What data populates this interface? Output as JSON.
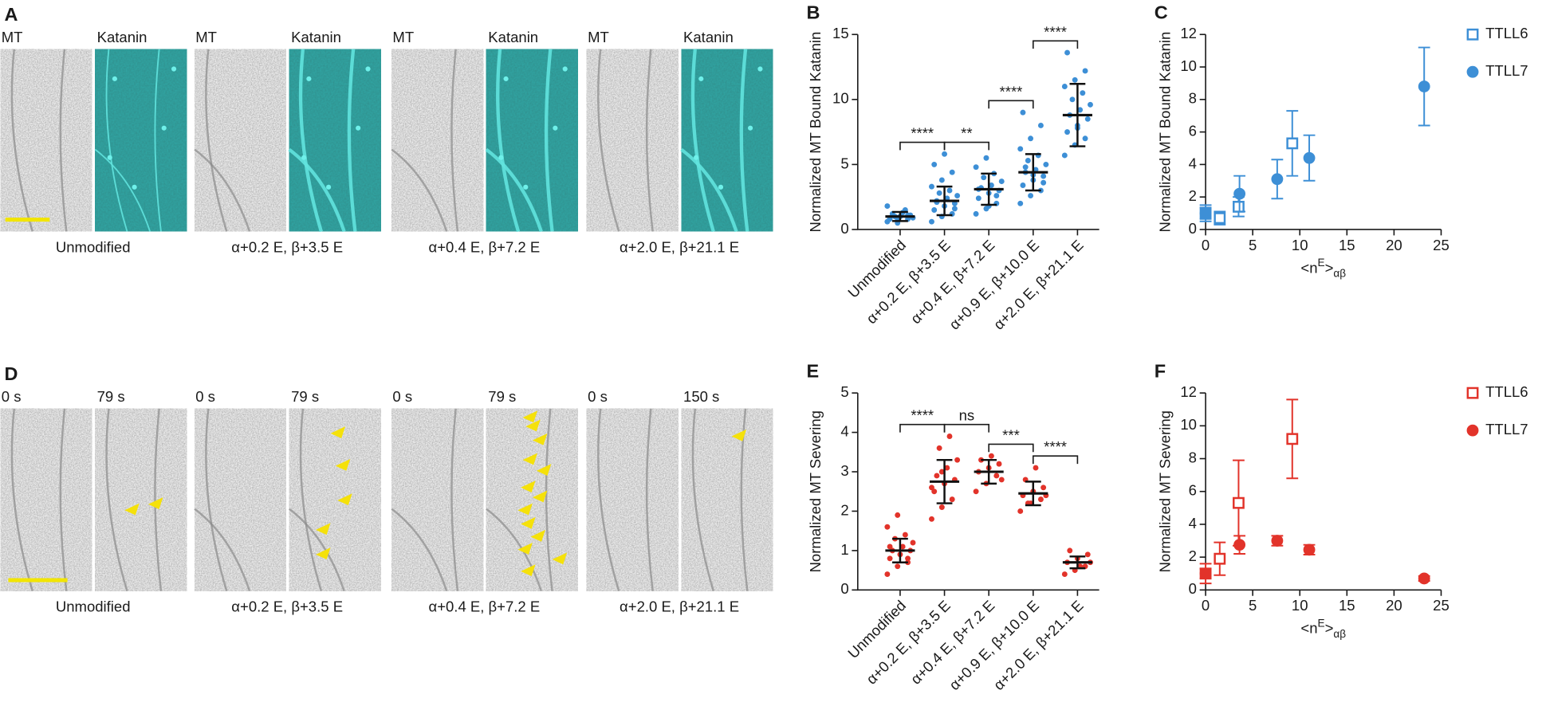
{
  "figure_a": {
    "letter": "A",
    "pairs": [
      {
        "left": "MT",
        "right": "Katanin",
        "caption": "Unmodified"
      },
      {
        "left": "MT",
        "right": "Katanin",
        "caption": "α+0.2 E, β+3.5 E"
      },
      {
        "left": "MT",
        "right": "Katanin",
        "caption": "α+0.4 E, β+7.2 E"
      },
      {
        "left": "MT",
        "right": "Katanin",
        "caption": "α+2.0 E, β+21.1 E"
      }
    ]
  },
  "figure_d": {
    "letter": "D",
    "pairs": [
      {
        "left": "0 s",
        "right": "79 s",
        "caption": "Unmodified"
      },
      {
        "left": "0 s",
        "right": "79 s",
        "caption": "α+0.2 E, β+3.5 E"
      },
      {
        "left": "0 s",
        "right": "79 s",
        "caption": "α+0.4 E, β+7.2 E"
      },
      {
        "left": "0 s",
        "right": "150 s",
        "caption": "α+2.0 E, β+21.1 E"
      }
    ]
  },
  "chart_data": [
    {
      "letter": "B",
      "type": "dot_plot",
      "ylabel": "Normalized MT Bound Katanin",
      "color": "#3d8fd6",
      "categories": [
        "Unmodified",
        "α+0.2 E, β+3.5 E",
        "α+0.4 E, β+7.2 E",
        "α+0.9 E, β+10.0 E",
        "α+2.0 E, β+21.1 E"
      ],
      "points": [
        [
          0.6,
          0.7,
          0.8,
          0.9,
          1.0,
          1.1,
          1.2,
          1.3,
          0.9,
          1.0,
          1.5,
          1.8,
          0.5,
          1.1,
          0.8
        ],
        [
          0.6,
          1.0,
          1.2,
          1.5,
          1.8,
          2.0,
          2.2,
          2.4,
          2.6,
          2.8,
          3.0,
          3.3,
          3.8,
          4.4,
          5.0,
          5.8,
          1.6,
          2.1
        ],
        [
          1.2,
          1.6,
          2.0,
          2.4,
          2.8,
          3.0,
          3.2,
          3.4,
          3.7,
          4.0,
          4.3,
          4.8,
          5.5,
          2.6,
          3.1,
          1.8
        ],
        [
          2.0,
          2.6,
          3.0,
          3.4,
          3.8,
          4.1,
          4.4,
          4.6,
          5.0,
          5.3,
          5.7,
          6.2,
          7.0,
          8.0,
          9.0,
          4.2,
          3.6,
          4.8
        ],
        [
          5.7,
          6.5,
          7.0,
          7.5,
          8.0,
          8.5,
          8.8,
          9.2,
          9.6,
          10.0,
          10.5,
          11.0,
          11.5,
          12.2,
          13.6,
          7.8
        ]
      ],
      "means": [
        1.0,
        2.2,
        3.1,
        4.4,
        8.8
      ],
      "sd": [
        0.35,
        1.1,
        1.2,
        1.4,
        2.4
      ],
      "ylim": [
        0,
        15
      ],
      "yticks": [
        0,
        5,
        10,
        15
      ],
      "comparisons": [
        {
          "from": 0,
          "to": 1,
          "label": "****"
        },
        {
          "from": 1,
          "to": 2,
          "label": "**"
        },
        {
          "from": 2,
          "to": 3,
          "label": "****"
        },
        {
          "from": 3,
          "to": 4,
          "label": "****"
        }
      ]
    },
    {
      "letter": "C",
      "type": "scatter",
      "ylabel": "Normalized MT Bound Katanin",
      "xlabel": {
        "main": "<n",
        "sup": "E",
        "end": ">",
        "sub": "αβ"
      },
      "xlim": [
        0,
        25
      ],
      "xticks": [
        0,
        5,
        10,
        15,
        20,
        25
      ],
      "ylim": [
        0,
        12
      ],
      "yticks": [
        0,
        2,
        4,
        6,
        8,
        10,
        12
      ],
      "series": [
        {
          "name": "TTLL6",
          "color": "#3d8fd6",
          "marker": "square-open",
          "x": [
            0,
            1.5,
            3.5,
            9.2
          ],
          "values": [
            1.0,
            0.7,
            1.4,
            5.3
          ],
          "errors": [
            0.5,
            0.4,
            0.6,
            2.0
          ]
        },
        {
          "name": "TTLL7",
          "color": "#3d8fd6",
          "marker": "circle",
          "x": [
            0,
            3.6,
            7.6,
            11,
            23.2
          ],
          "values": [
            1.0,
            2.2,
            3.1,
            4.4,
            8.8
          ],
          "errors": [
            0.35,
            1.1,
            1.2,
            1.4,
            2.4
          ]
        }
      ]
    },
    {
      "letter": "E",
      "type": "dot_plot",
      "ylabel": "Normalized MT Severing",
      "color": "#e2332a",
      "categories": [
        "Unmodified",
        "α+0.2 E, β+3.5 E",
        "α+0.4 E, β+7.2 E",
        "α+0.9 E, β+10.0 E",
        "α+2.0 E, β+21.1 E"
      ],
      "points": [
        [
          0.4,
          0.6,
          0.7,
          0.8,
          0.9,
          1.0,
          1.0,
          1.1,
          1.2,
          1.3,
          1.4,
          1.6,
          1.9,
          0.8,
          1.1
        ],
        [
          1.8,
          2.1,
          2.3,
          2.5,
          2.7,
          2.8,
          2.9,
          3.1,
          3.3,
          3.6,
          3.9,
          2.6,
          3.0
        ],
        [
          2.5,
          2.7,
          2.9,
          3.0,
          3.1,
          3.2,
          3.3,
          3.4,
          2.8
        ],
        [
          2.0,
          2.2,
          2.3,
          2.4,
          2.5,
          2.6,
          2.8,
          3.1,
          2.4,
          2.2
        ],
        [
          0.4,
          0.5,
          0.6,
          0.7,
          0.8,
          0.9,
          1.0,
          0.6,
          0.7
        ]
      ],
      "means": [
        1.0,
        2.75,
        3.0,
        2.45,
        0.7
      ],
      "sd": [
        0.3,
        0.55,
        0.3,
        0.3,
        0.15
      ],
      "ylim": [
        0,
        5
      ],
      "yticks": [
        0,
        1,
        2,
        3,
        4,
        5
      ],
      "comparisons": [
        {
          "from": 0,
          "to": 1,
          "label": "****"
        },
        {
          "from": 1,
          "to": 2,
          "label": "ns"
        },
        {
          "from": 2,
          "to": 3,
          "label": "***"
        },
        {
          "from": 3,
          "to": 4,
          "label": "****"
        }
      ]
    },
    {
      "letter": "F",
      "type": "scatter",
      "ylabel": "Normalized MT Severing",
      "xlabel": {
        "main": "<n",
        "sup": "E",
        "end": ">",
        "sub": "αβ"
      },
      "xlim": [
        0,
        25
      ],
      "xticks": [
        0,
        5,
        10,
        15,
        20,
        25
      ],
      "ylim": [
        0,
        12
      ],
      "yticks": [
        0,
        2,
        4,
        6,
        8,
        10,
        12
      ],
      "series": [
        {
          "name": "TTLL6",
          "color": "#e2332a",
          "marker": "square-open",
          "x": [
            0,
            1.5,
            3.5,
            9.2
          ],
          "values": [
            1.0,
            1.9,
            5.3,
            9.2
          ],
          "errors": [
            0.6,
            1.0,
            2.6,
            2.4
          ]
        },
        {
          "name": "TTLL7",
          "color": "#e2332a",
          "marker": "circle",
          "x": [
            0,
            3.6,
            7.6,
            11,
            23.2
          ],
          "values": [
            1.0,
            2.75,
            3.0,
            2.45,
            0.7
          ],
          "errors": [
            0.3,
            0.55,
            0.3,
            0.3,
            0.15
          ]
        }
      ]
    }
  ]
}
